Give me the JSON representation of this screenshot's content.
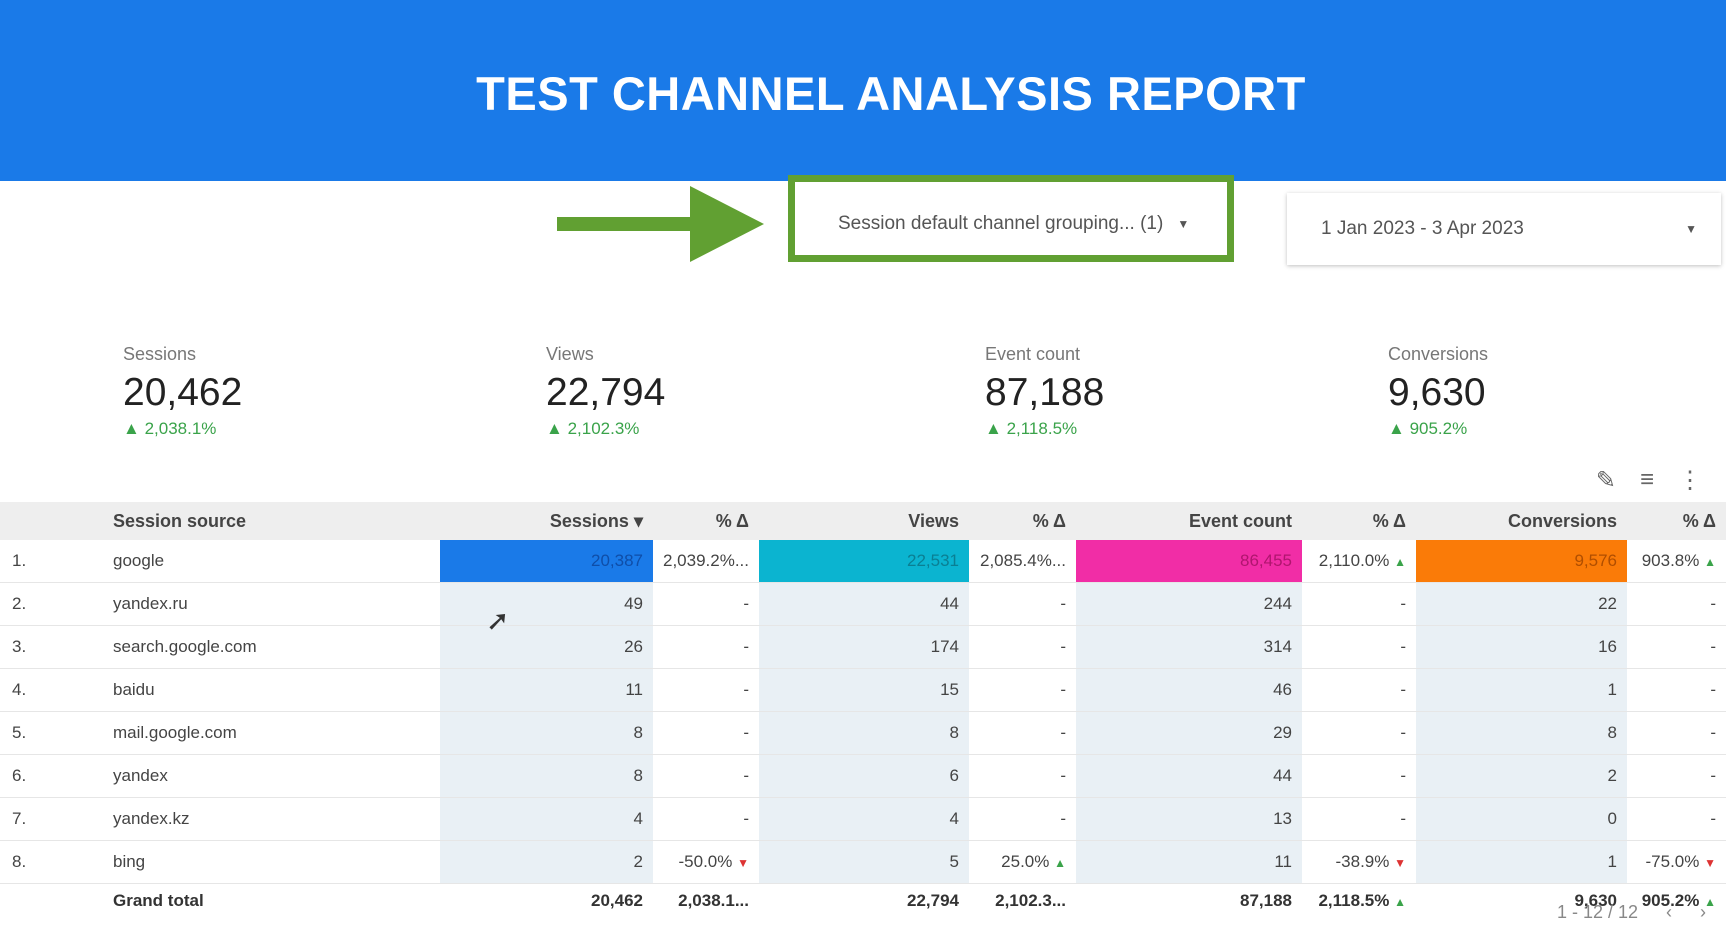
{
  "title": "TEST CHANNEL ANALYSIS REPORT",
  "filter": {
    "label": "Session default channel grouping... (1)"
  },
  "date_range": {
    "label": "1 Jan 2023 - 3 Apr 2023"
  },
  "kpis": [
    {
      "label": "Sessions",
      "value": "20,462",
      "change": "2,038.1%"
    },
    {
      "label": "Views",
      "value": "22,794",
      "change": "2,102.3%"
    },
    {
      "label": "Event count",
      "value": "87,188",
      "change": "2,118.5%"
    },
    {
      "label": "Conversions",
      "value": "9,630",
      "change": "905.2%"
    }
  ],
  "table": {
    "headers": [
      "Session source",
      "Sessions",
      "% Δ",
      "Views",
      "% Δ",
      "Event count",
      "% Δ",
      "Conversions",
      "% Δ"
    ],
    "sort_indicator": "▾",
    "rows": [
      {
        "n": "1.",
        "src": "google",
        "s": "20,387",
        "sd": "2,039.2%...",
        "v": "22,531",
        "vd": "2,085.4%...",
        "e": "86,455",
        "ed": "2,110.0%",
        "c": "9,576",
        "cd": "903.8%"
      },
      {
        "n": "2.",
        "src": "yandex.ru",
        "s": "49",
        "sd": "-",
        "v": "44",
        "vd": "-",
        "e": "244",
        "ed": "-",
        "c": "22",
        "cd": "-"
      },
      {
        "n": "3.",
        "src": "search.google.com",
        "s": "26",
        "sd": "-",
        "v": "174",
        "vd": "-",
        "e": "314",
        "ed": "-",
        "c": "16",
        "cd": "-"
      },
      {
        "n": "4.",
        "src": "baidu",
        "s": "11",
        "sd": "-",
        "v": "15",
        "vd": "-",
        "e": "46",
        "ed": "-",
        "c": "1",
        "cd": "-"
      },
      {
        "n": "5.",
        "src": "mail.google.com",
        "s": "8",
        "sd": "-",
        "v": "8",
        "vd": "-",
        "e": "29",
        "ed": "-",
        "c": "8",
        "cd": "-"
      },
      {
        "n": "6.",
        "src": "yandex",
        "s": "8",
        "sd": "-",
        "v": "6",
        "vd": "-",
        "e": "44",
        "ed": "-",
        "c": "2",
        "cd": "-"
      },
      {
        "n": "7.",
        "src": "yandex.kz",
        "s": "4",
        "sd": "-",
        "v": "4",
        "vd": "-",
        "e": "13",
        "ed": "-",
        "c": "0",
        "cd": "-"
      },
      {
        "n": "8.",
        "src": "bing",
        "s": "2",
        "sd": "-50.0%",
        "v": "5",
        "vd": "25.0%",
        "e": "11",
        "ed": "-38.9%",
        "c": "1",
        "cd": "-75.0%"
      }
    ],
    "total": {
      "label": "Grand total",
      "s": "20,462",
      "sd": "2,038.1...",
      "v": "22,794",
      "vd": "2,102.3...",
      "e": "87,188",
      "ed": "2,118.5%",
      "c": "9,630",
      "cd": "905.2%"
    }
  },
  "pagination": {
    "label": "1 - 12 / 12",
    "prev": "‹",
    "next": "›"
  },
  "icons": {
    "edit": "pencil-icon",
    "filter": "filter-icon",
    "more": "kebab-icon"
  }
}
